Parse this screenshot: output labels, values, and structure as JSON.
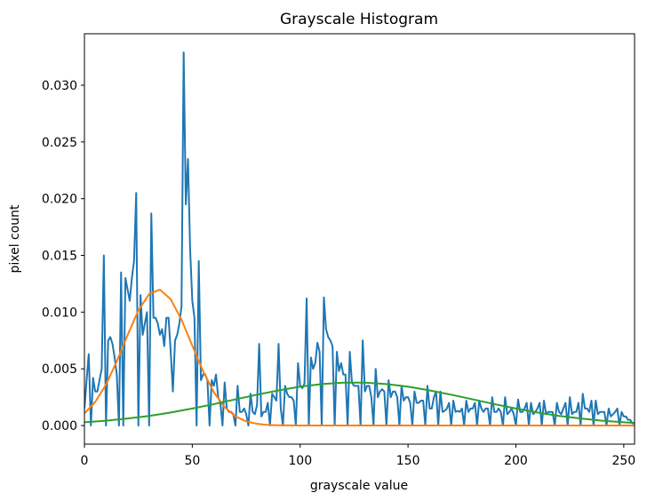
{
  "chart_data": {
    "type": "line",
    "title": "Grayscale Histogram",
    "x_label": "grayscale value",
    "y_label": "pixel count",
    "xlim": [
      0,
      255
    ],
    "xticks": [
      0,
      50,
      100,
      150,
      200,
      250
    ],
    "ylim": [
      -0.00164,
      0.03454
    ],
    "yticks": [
      {
        "value": 0,
        "label": "0.000"
      },
      {
        "value": 0.005,
        "label": "0.005"
      },
      {
        "value": 0.01,
        "label": "0.010"
      },
      {
        "value": 0.015,
        "label": "0.015"
      },
      {
        "value": 0.02,
        "label": "0.020"
      },
      {
        "value": 0.025,
        "label": "0.025"
      },
      {
        "value": 0.03,
        "label": "0.030"
      }
    ],
    "grid": false,
    "series": [
      {
        "color": "#1f77b4",
        "x": [
          0,
          1,
          2,
          3,
          4,
          5,
          6,
          7,
          8,
          9,
          10,
          11,
          12,
          13,
          14,
          15,
          16,
          17,
          18,
          19,
          20,
          21,
          22,
          23,
          24,
          25,
          26,
          27,
          28,
          29,
          30,
          31,
          32,
          33,
          34,
          35,
          36,
          37,
          38,
          39,
          40,
          41,
          42,
          43,
          44,
          45,
          46,
          47,
          48,
          49,
          50,
          51,
          52,
          53,
          54,
          55,
          56,
          57,
          58,
          59,
          60,
          61,
          62,
          63,
          64,
          65,
          66,
          67,
          68,
          69,
          70,
          71,
          72,
          73,
          74,
          75,
          76,
          77,
          78,
          79,
          80,
          81,
          82,
          83,
          84,
          85,
          86,
          87,
          88,
          89,
          90,
          91,
          92,
          93,
          94,
          95,
          96,
          97,
          98,
          99,
          100,
          101,
          102,
          103,
          104,
          105,
          106,
          107,
          108,
          109,
          110,
          111,
          112,
          113,
          114,
          115,
          116,
          117,
          118,
          119,
          120,
          121,
          122,
          123,
          124,
          125,
          126,
          127,
          128,
          129,
          130,
          131,
          132,
          133,
          134,
          135,
          136,
          137,
          138,
          139,
          140,
          141,
          142,
          143,
          144,
          145,
          146,
          147,
          148,
          149,
          150,
          151,
          152,
          153,
          154,
          155,
          156,
          157,
          158,
          159,
          160,
          161,
          162,
          163,
          164,
          165,
          166,
          167,
          168,
          169,
          170,
          171,
          172,
          173,
          174,
          175,
          176,
          177,
          178,
          179,
          180,
          181,
          182,
          183,
          184,
          185,
          186,
          187,
          188,
          189,
          190,
          191,
          192,
          193,
          194,
          195,
          196,
          197,
          198,
          199,
          200,
          201,
          202,
          203,
          204,
          205,
          206,
          207,
          208,
          209,
          210,
          211,
          212,
          213,
          214,
          215,
          216,
          217,
          218,
          219,
          220,
          221,
          222,
          223,
          224,
          225,
          226,
          227,
          228,
          229,
          230,
          231,
          232,
          233,
          234,
          235,
          236,
          237,
          238,
          239,
          240,
          241,
          242,
          243,
          244,
          245,
          246,
          247,
          248,
          249,
          250,
          251,
          252,
          253,
          254,
          255
        ],
        "values": [
          0.0015,
          0.004,
          0.0063,
          0,
          0.0042,
          0.003,
          0.003,
          0.004,
          0.005,
          0.015,
          0,
          0.0075,
          0.0078,
          0.0072,
          0.006,
          0.0045,
          0,
          0.0135,
          0,
          0.013,
          0.012,
          0.011,
          0.013,
          0.0145,
          0.0205,
          0,
          0.0115,
          0.008,
          0.009,
          0.01,
          0,
          0.0187,
          0.0095,
          0.0095,
          0.009,
          0.008,
          0.0085,
          0.007,
          0.0095,
          0.0095,
          0.0065,
          0.003,
          0.0075,
          0.008,
          0.009,
          0.0105,
          0.0329,
          0.0195,
          0.0235,
          0.0155,
          0.011,
          0.0095,
          0,
          0.0145,
          0.004,
          0.0045,
          0.0045,
          0.004,
          0,
          0.004,
          0.0035,
          0.0045,
          0.0025,
          0.002,
          0,
          0.0038,
          0.0015,
          0.0012,
          0.0012,
          0.001,
          0,
          0.0035,
          0.0012,
          0.0012,
          0.0015,
          0.001,
          0,
          0.0028,
          0.0012,
          0.001,
          0.0018,
          0.0072,
          0.0008,
          0.0012,
          0.0012,
          0.002,
          0,
          0.0028,
          0.0025,
          0.0022,
          0.0072,
          0.0015,
          0,
          0.0035,
          0.0028,
          0.0025,
          0.0025,
          0.0022,
          0,
          0.0055,
          0.0035,
          0.0033,
          0.0037,
          0.0112,
          0,
          0.006,
          0.005,
          0.0055,
          0.0073,
          0.0065,
          0,
          0.0113,
          0.0085,
          0.0078,
          0.0075,
          0.007,
          0,
          0.0065,
          0.0048,
          0.0055,
          0.0045,
          0.0045,
          0,
          0.0065,
          0.0038,
          0.0035,
          0.0035,
          0.0035,
          0,
          0.0075,
          0.003,
          0.0035,
          0.0035,
          0.0025,
          0,
          0.005,
          0.0025,
          0.003,
          0.0032,
          0.003,
          0,
          0.004,
          0.0025,
          0.003,
          0.003,
          0.0025,
          0,
          0.0035,
          0.0022,
          0.0025,
          0.0025,
          0.002,
          0,
          0.003,
          0.002,
          0.002,
          0.0022,
          0.0022,
          0,
          0.0035,
          0.0015,
          0.0015,
          0.0025,
          0.003,
          0,
          0.003,
          0.0012,
          0.0013,
          0.0015,
          0.002,
          0,
          0.0022,
          0.0012,
          0.0013,
          0.0012,
          0.0015,
          0,
          0.0022,
          0.0012,
          0.0015,
          0.0015,
          0.002,
          0,
          0.0022,
          0.0015,
          0.0012,
          0.0015,
          0.0015,
          0,
          0.0025,
          0.0012,
          0.0012,
          0.0015,
          0.0012,
          0,
          0.0025,
          0.001,
          0.0012,
          0.0015,
          0.001,
          0,
          0.0023,
          0.0012,
          0.0012,
          0.0015,
          0.002,
          0,
          0.002,
          0.001,
          0.0012,
          0.0015,
          0.002,
          0,
          0.0022,
          0.001,
          0.0012,
          0.0012,
          0.0012,
          0,
          0.002,
          0.0012,
          0.001,
          0.0015,
          0.002,
          0,
          0.0025,
          0.001,
          0.0012,
          0.0012,
          0.002,
          0,
          0.0028,
          0.0015,
          0.0015,
          0.0012,
          0.0022,
          0,
          0.0022,
          0.001,
          0.0012,
          0.0012,
          0.0012,
          0,
          0.0015,
          0.0008,
          0.001,
          0.0012,
          0.0015,
          0,
          0.0012,
          0.0008,
          0.0008,
          0.0005,
          0.0005,
          0.0002,
          0.0002
        ]
      },
      {
        "color": "#ff7f0e",
        "x": [
          0,
          5,
          10,
          15,
          20,
          25,
          30,
          35,
          40,
          45,
          50,
          55,
          60,
          65,
          70,
          75,
          80,
          85,
          90,
          100,
          150,
          200,
          255
        ],
        "values": [
          0.00108,
          0.00208,
          0.00361,
          0.00566,
          0.00798,
          0.01014,
          0.0116,
          0.01198,
          0.01113,
          0.00933,
          0.00704,
          0.00479,
          0.00293,
          0.00162,
          0.00081,
          0.00036,
          0.00015,
          5e-05,
          2e-05,
          0,
          0,
          0,
          0
        ]
      },
      {
        "color": "#2ca02c",
        "x": [
          0,
          10,
          20,
          30,
          40,
          50,
          60,
          70,
          80,
          90,
          100,
          110,
          120,
          130,
          140,
          150,
          160,
          170,
          180,
          190,
          200,
          210,
          220,
          230,
          240,
          250,
          255
        ],
        "values": [
          0.00029,
          0.00043,
          0.00062,
          0.00085,
          0.00115,
          0.0015,
          0.00189,
          0.00231,
          0.00272,
          0.0031,
          0.00343,
          0.00366,
          0.00378,
          0.00378,
          0.00366,
          0.00343,
          0.0031,
          0.00272,
          0.00231,
          0.00189,
          0.0015,
          0.00115,
          0.00085,
          0.00062,
          0.00043,
          0.00029,
          0.00023
        ]
      }
    ]
  }
}
